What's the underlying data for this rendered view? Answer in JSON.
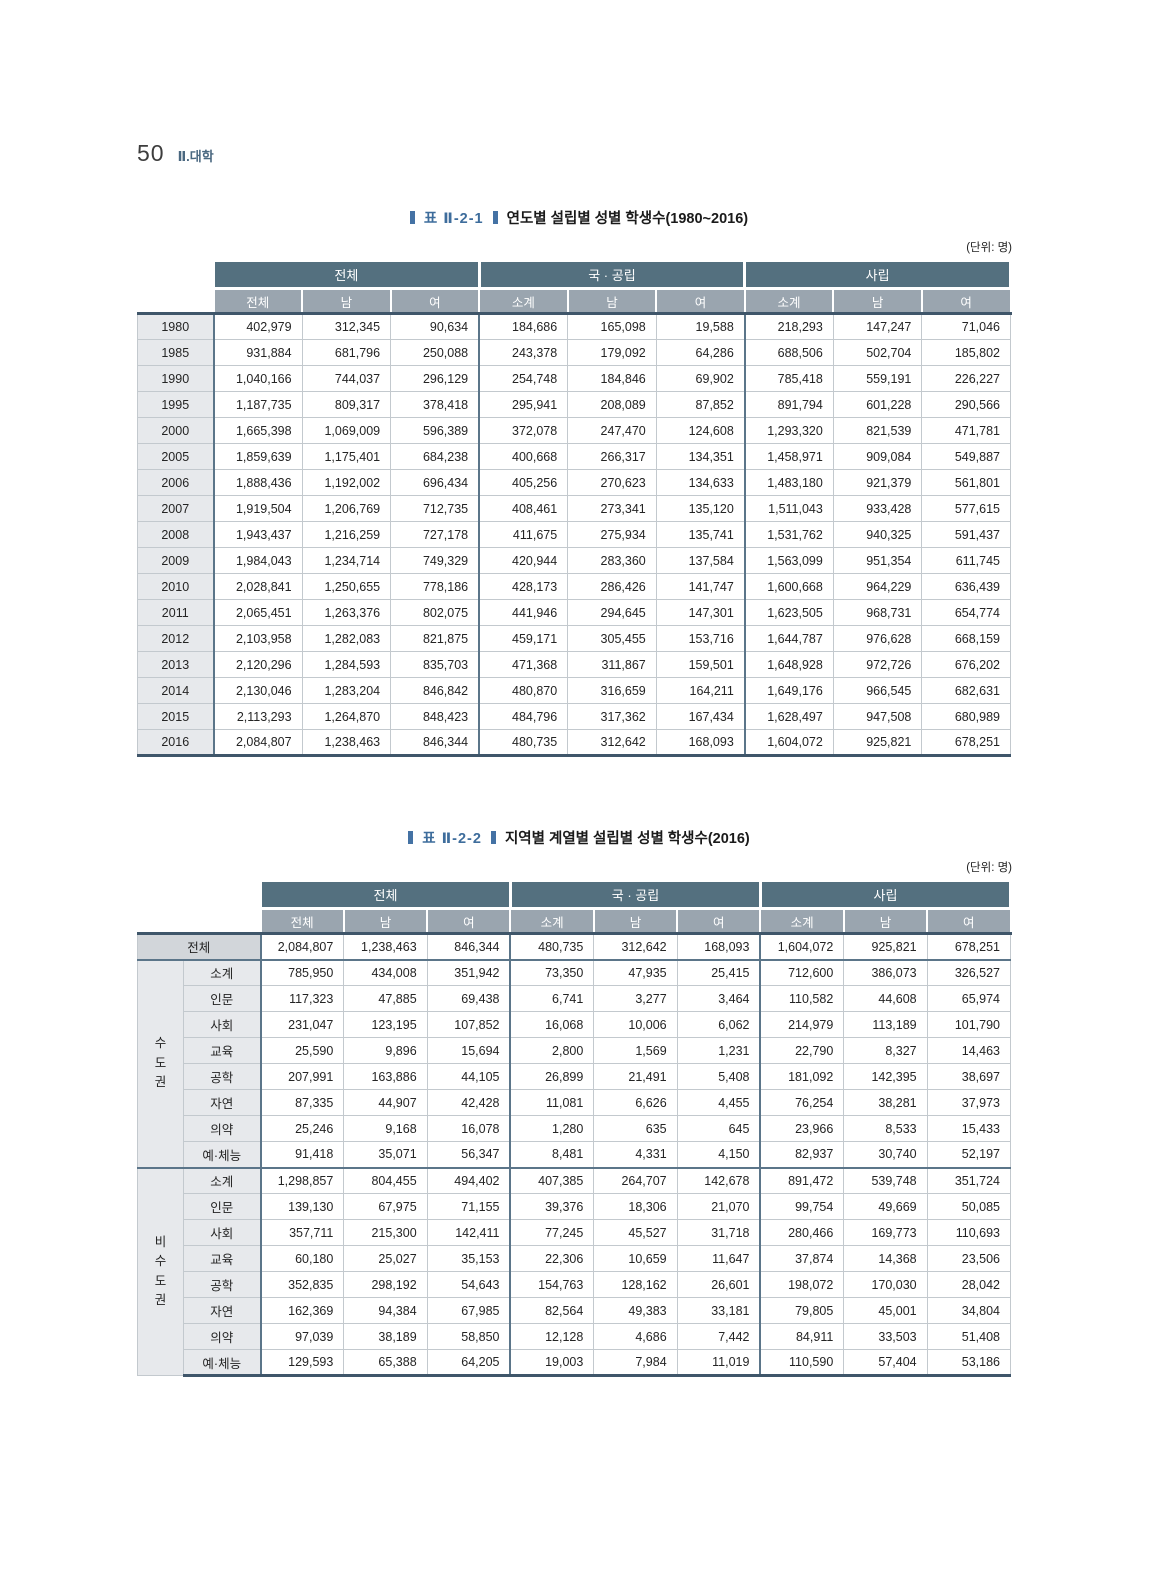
{
  "page": {
    "number": "50",
    "section": "Ⅱ.대학"
  },
  "colors": {
    "accent": "#4472a4",
    "header_dark": "#54707f",
    "header_mid": "#9aa5af",
    "label_bg": "#e7e9ec",
    "total_label_bg": "#d2d6da",
    "grid_light": "#c3c9ce",
    "grid_dark": "#5b7589",
    "outer_rule": "#3f566a"
  },
  "table1": {
    "title_prefix": "표  Ⅱ-2-1",
    "title": "연도별 설립별 성별 학생수(1980~2016)",
    "unit": "(단위: 명)",
    "col_groups": [
      "전체",
      "국 · 공립",
      "사립"
    ],
    "sub_headers": [
      "전체",
      "남",
      "여",
      "소계",
      "남",
      "여",
      "소계",
      "남",
      "여"
    ],
    "rows": [
      {
        "label": "1980",
        "values": [
          "402,979",
          "312,345",
          "90,634",
          "184,686",
          "165,098",
          "19,588",
          "218,293",
          "147,247",
          "71,046"
        ]
      },
      {
        "label": "1985",
        "values": [
          "931,884",
          "681,796",
          "250,088",
          "243,378",
          "179,092",
          "64,286",
          "688,506",
          "502,704",
          "185,802"
        ]
      },
      {
        "label": "1990",
        "values": [
          "1,040,166",
          "744,037",
          "296,129",
          "254,748",
          "184,846",
          "69,902",
          "785,418",
          "559,191",
          "226,227"
        ]
      },
      {
        "label": "1995",
        "values": [
          "1,187,735",
          "809,317",
          "378,418",
          "295,941",
          "208,089",
          "87,852",
          "891,794",
          "601,228",
          "290,566"
        ]
      },
      {
        "label": "2000",
        "values": [
          "1,665,398",
          "1,069,009",
          "596,389",
          "372,078",
          "247,470",
          "124,608",
          "1,293,320",
          "821,539",
          "471,781"
        ]
      },
      {
        "label": "2005",
        "values": [
          "1,859,639",
          "1,175,401",
          "684,238",
          "400,668",
          "266,317",
          "134,351",
          "1,458,971",
          "909,084",
          "549,887"
        ]
      },
      {
        "label": "2006",
        "values": [
          "1,888,436",
          "1,192,002",
          "696,434",
          "405,256",
          "270,623",
          "134,633",
          "1,483,180",
          "921,379",
          "561,801"
        ]
      },
      {
        "label": "2007",
        "values": [
          "1,919,504",
          "1,206,769",
          "712,735",
          "408,461",
          "273,341",
          "135,120",
          "1,511,043",
          "933,428",
          "577,615"
        ]
      },
      {
        "label": "2008",
        "values": [
          "1,943,437",
          "1,216,259",
          "727,178",
          "411,675",
          "275,934",
          "135,741",
          "1,531,762",
          "940,325",
          "591,437"
        ]
      },
      {
        "label": "2009",
        "values": [
          "1,984,043",
          "1,234,714",
          "749,329",
          "420,944",
          "283,360",
          "137,584",
          "1,563,099",
          "951,354",
          "611,745"
        ]
      },
      {
        "label": "2010",
        "values": [
          "2,028,841",
          "1,250,655",
          "778,186",
          "428,173",
          "286,426",
          "141,747",
          "1,600,668",
          "964,229",
          "636,439"
        ]
      },
      {
        "label": "2011",
        "values": [
          "2,065,451",
          "1,263,376",
          "802,075",
          "441,946",
          "294,645",
          "147,301",
          "1,623,505",
          "968,731",
          "654,774"
        ]
      },
      {
        "label": "2012",
        "values": [
          "2,103,958",
          "1,282,083",
          "821,875",
          "459,171",
          "305,455",
          "153,716",
          "1,644,787",
          "976,628",
          "668,159"
        ]
      },
      {
        "label": "2013",
        "values": [
          "2,120,296",
          "1,284,593",
          "835,703",
          "471,368",
          "311,867",
          "159,501",
          "1,648,928",
          "972,726",
          "676,202"
        ]
      },
      {
        "label": "2014",
        "values": [
          "2,130,046",
          "1,283,204",
          "846,842",
          "480,870",
          "316,659",
          "164,211",
          "1,649,176",
          "966,545",
          "682,631"
        ]
      },
      {
        "label": "2015",
        "values": [
          "2,113,293",
          "1,264,870",
          "848,423",
          "484,796",
          "317,362",
          "167,434",
          "1,628,497",
          "947,508",
          "680,989"
        ]
      },
      {
        "label": "2016",
        "values": [
          "2,084,807",
          "1,238,463",
          "846,344",
          "480,735",
          "312,642",
          "168,093",
          "1,604,072",
          "925,821",
          "678,251"
        ]
      }
    ]
  },
  "table2": {
    "title_prefix": "표  Ⅱ-2-2",
    "title": "지역별 계열별 설립별 성별 학생수(2016)",
    "unit": "(단위: 명)",
    "col_groups": [
      "전체",
      "국 · 공립",
      "사립"
    ],
    "sub_headers": [
      "전체",
      "남",
      "여",
      "소계",
      "남",
      "여",
      "소계",
      "남",
      "여"
    ],
    "total_row": {
      "label": "전체",
      "values": [
        "2,084,807",
        "1,238,463",
        "846,344",
        "480,735",
        "312,642",
        "168,093",
        "1,604,072",
        "925,821",
        "678,251"
      ]
    },
    "groups": [
      {
        "label": "수도권",
        "rows": [
          {
            "label": "소계",
            "values": [
              "785,950",
              "434,008",
              "351,942",
              "73,350",
              "47,935",
              "25,415",
              "712,600",
              "386,073",
              "326,527"
            ]
          },
          {
            "label": "인문",
            "values": [
              "117,323",
              "47,885",
              "69,438",
              "6,741",
              "3,277",
              "3,464",
              "110,582",
              "44,608",
              "65,974"
            ]
          },
          {
            "label": "사회",
            "values": [
              "231,047",
              "123,195",
              "107,852",
              "16,068",
              "10,006",
              "6,062",
              "214,979",
              "113,189",
              "101,790"
            ]
          },
          {
            "label": "교육",
            "values": [
              "25,590",
              "9,896",
              "15,694",
              "2,800",
              "1,569",
              "1,231",
              "22,790",
              "8,327",
              "14,463"
            ]
          },
          {
            "label": "공학",
            "values": [
              "207,991",
              "163,886",
              "44,105",
              "26,899",
              "21,491",
              "5,408",
              "181,092",
              "142,395",
              "38,697"
            ]
          },
          {
            "label": "자연",
            "values": [
              "87,335",
              "44,907",
              "42,428",
              "11,081",
              "6,626",
              "4,455",
              "76,254",
              "38,281",
              "37,973"
            ]
          },
          {
            "label": "의약",
            "values": [
              "25,246",
              "9,168",
              "16,078",
              "1,280",
              "635",
              "645",
              "23,966",
              "8,533",
              "15,433"
            ]
          },
          {
            "label": "예·체능",
            "values": [
              "91,418",
              "35,071",
              "56,347",
              "8,481",
              "4,331",
              "4,150",
              "82,937",
              "30,740",
              "52,197"
            ]
          }
        ]
      },
      {
        "label": "비수도권",
        "rows": [
          {
            "label": "소계",
            "values": [
              "1,298,857",
              "804,455",
              "494,402",
              "407,385",
              "264,707",
              "142,678",
              "891,472",
              "539,748",
              "351,724"
            ]
          },
          {
            "label": "인문",
            "values": [
              "139,130",
              "67,975",
              "71,155",
              "39,376",
              "18,306",
              "21,070",
              "99,754",
              "49,669",
              "50,085"
            ]
          },
          {
            "label": "사회",
            "values": [
              "357,711",
              "215,300",
              "142,411",
              "77,245",
              "45,527",
              "31,718",
              "280,466",
              "169,773",
              "110,693"
            ]
          },
          {
            "label": "교육",
            "values": [
              "60,180",
              "25,027",
              "35,153",
              "22,306",
              "10,659",
              "11,647",
              "37,874",
              "14,368",
              "23,506"
            ]
          },
          {
            "label": "공학",
            "values": [
              "352,835",
              "298,192",
              "54,643",
              "154,763",
              "128,162",
              "26,601",
              "198,072",
              "170,030",
              "28,042"
            ]
          },
          {
            "label": "자연",
            "values": [
              "162,369",
              "94,384",
              "67,985",
              "82,564",
              "49,383",
              "33,181",
              "79,805",
              "45,001",
              "34,804"
            ]
          },
          {
            "label": "의약",
            "values": [
              "97,039",
              "38,189",
              "58,850",
              "12,128",
              "4,686",
              "7,442",
              "84,911",
              "33,503",
              "51,408"
            ]
          },
          {
            "label": "예·체능",
            "values": [
              "129,593",
              "65,388",
              "64,205",
              "19,003",
              "7,984",
              "11,019",
              "110,590",
              "57,404",
              "53,186"
            ]
          }
        ]
      }
    ]
  }
}
